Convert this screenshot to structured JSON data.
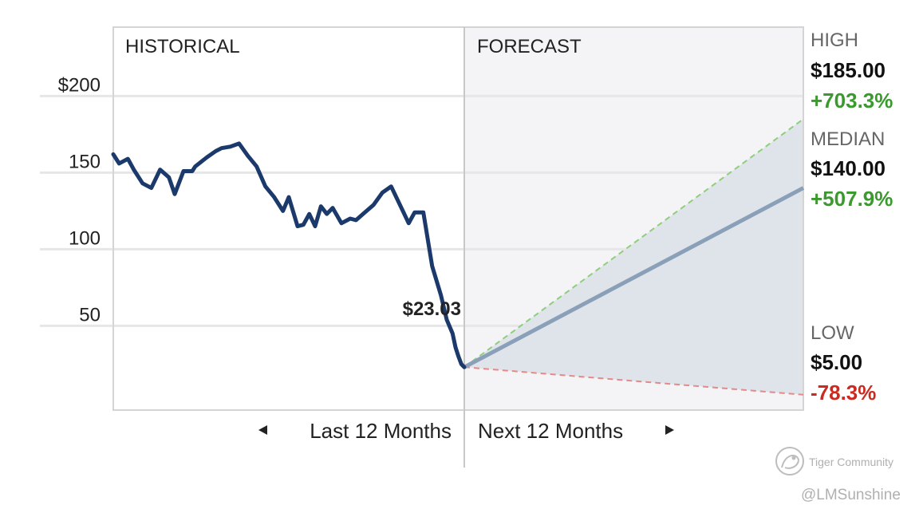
{
  "chart_data": {
    "type": "line",
    "sections": {
      "historical": "HISTORICAL",
      "forecast": "FORECAST"
    },
    "y_ticks": [
      {
        "value": 200,
        "label": "$200"
      },
      {
        "value": 150,
        "label": "150"
      },
      {
        "value": 100,
        "label": "100"
      },
      {
        "value": 50,
        "label": "50"
      }
    ],
    "ylim": [
      -5,
      245
    ],
    "x_labels": {
      "historical": "Last 12 Months",
      "forecast": "Next 12 Months"
    },
    "historical_series": {
      "x": [
        0,
        0.2,
        0.5,
        0.7,
        1.0,
        1.3,
        1.6,
        1.9,
        2.1,
        2.4,
        2.7,
        2.8,
        3.2,
        3.5,
        3.7,
        4.0,
        4.3,
        4.6,
        4.9,
        5.2,
        5.5,
        5.8,
        6.0,
        6.3,
        6.5,
        6.7,
        6.9,
        7.1,
        7.3,
        7.5,
        7.8,
        8.1,
        8.3,
        8.6,
        8.9,
        9.2,
        9.5,
        9.8,
        10.1,
        10.3,
        10.6,
        10.9,
        11.2,
        11.4,
        11.6,
        11.7,
        11.8,
        11.9,
        12.0
      ],
      "y": [
        162,
        156,
        159,
        152,
        143,
        140,
        152,
        147,
        136,
        151,
        151,
        154,
        160,
        164,
        166,
        167,
        169,
        161,
        154,
        141,
        134,
        125,
        134,
        115,
        116,
        123,
        115,
        128,
        123,
        127,
        117,
        120,
        119,
        124,
        129,
        137,
        141,
        129,
        117,
        124,
        124,
        89,
        70,
        54,
        45,
        36,
        30,
        25,
        23.03
      ]
    },
    "current_price_label": "$23.03",
    "current_price": 23.03,
    "forecast": {
      "high": {
        "label": "HIGH",
        "value": 185.0,
        "value_text": "$185.00",
        "change_text": "+703.3%"
      },
      "median": {
        "label": "MEDIAN",
        "value": 140.0,
        "value_text": "$140.00",
        "change_text": "+507.9%"
      },
      "low": {
        "label": "LOW",
        "value": 5.0,
        "value_text": "$5.00",
        "change_text": "-78.3%"
      }
    },
    "colors": {
      "historical_line": "#1b3a6b",
      "median_line": "#8aa0b8",
      "high_dash": "#8ecf7a",
      "low_dash": "#e48a8a",
      "band_fill": "#dfe3ea",
      "forecast_bg": "#f4f4f6",
      "grid": "#e6e6e6",
      "frame": "#d4d4d4",
      "positive": "#3a9a2e",
      "negative": "#cc2a20"
    },
    "grid": true
  },
  "watermark": {
    "brand": "Tiger Community",
    "handle": "@LMSunshine"
  }
}
